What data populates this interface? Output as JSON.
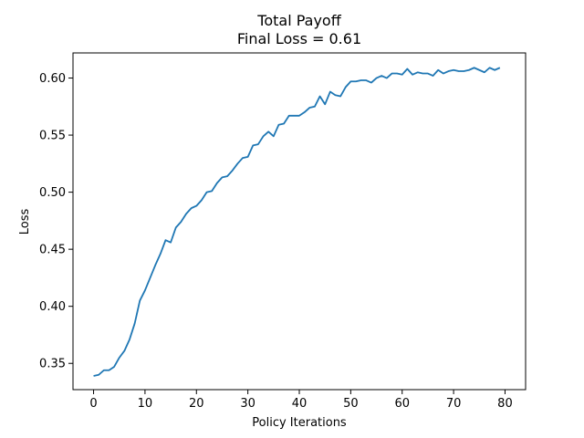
{
  "chart_data": {
    "type": "line",
    "title": "Total Payoff",
    "subtitle": "Final Loss = 0.61",
    "xlabel": "Policy Iterations",
    "ylabel": "Loss",
    "xlim": [
      -4,
      84
    ],
    "ylim": [
      0.327,
      0.622
    ],
    "xticks": [
      0,
      10,
      20,
      30,
      40,
      50,
      60,
      70,
      80
    ],
    "yticks": [
      0.35,
      0.4,
      0.45,
      0.5,
      0.55,
      0.6
    ],
    "ytick_labels": [
      "0.35",
      "0.40",
      "0.45",
      "0.50",
      "0.55",
      "0.60"
    ],
    "grid": false,
    "series_color": "#1f77b4",
    "series": [
      {
        "values": [
          0.339,
          0.34,
          0.344,
          0.344,
          0.347,
          0.355,
          0.361,
          0.371,
          0.385,
          0.405,
          0.414,
          0.425,
          0.436,
          0.446,
          0.458,
          0.456,
          0.469,
          0.474,
          0.481,
          0.486,
          0.488,
          0.493,
          0.5,
          0.501,
          0.508,
          0.513,
          0.514,
          0.519,
          0.525,
          0.53,
          0.531,
          0.541,
          0.542,
          0.549,
          0.553,
          0.549,
          0.559,
          0.56,
          0.567,
          0.567,
          0.567,
          0.57,
          0.574,
          0.575,
          0.584,
          0.577,
          0.588,
          0.585,
          0.584,
          0.592,
          0.597,
          0.597,
          0.598,
          0.598,
          0.596,
          0.6,
          0.602,
          0.6,
          0.604,
          0.604,
          0.603,
          0.608,
          0.603,
          0.605,
          0.604,
          0.604,
          0.602,
          0.607,
          0.604,
          0.606,
          0.607,
          0.606,
          0.606,
          0.607,
          0.609,
          0.607,
          0.605,
          0.609,
          0.607,
          0.609
        ]
      }
    ]
  }
}
